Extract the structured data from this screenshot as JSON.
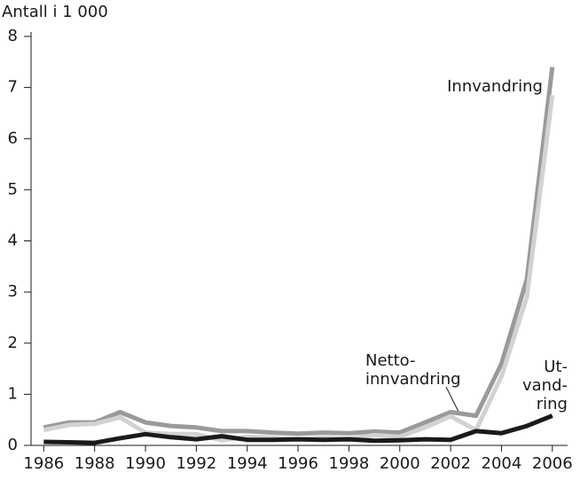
{
  "chart_data": {
    "type": "line",
    "title": "Antall i 1 000",
    "x": [
      1986,
      1987,
      1988,
      1989,
      1990,
      1991,
      1992,
      1993,
      1994,
      1995,
      1996,
      1997,
      1998,
      1999,
      2000,
      2001,
      2002,
      2003,
      2004,
      2005,
      2006
    ],
    "series": [
      {
        "label": [
          "Innvandring"
        ],
        "color": "#9a9a9a",
        "values": [
          0.35,
          0.45,
          0.45,
          0.65,
          0.45,
          0.38,
          0.35,
          0.28,
          0.28,
          0.25,
          0.23,
          0.25,
          0.24,
          0.27,
          0.25,
          0.45,
          0.65,
          0.58,
          1.6,
          3.25,
          7.4
        ]
      },
      {
        "label": [
          "Netto-",
          "innvandring"
        ],
        "color": "#d2d2d2",
        "values": [
          0.3,
          0.4,
          0.42,
          0.55,
          0.25,
          0.22,
          0.22,
          0.1,
          0.17,
          0.15,
          0.12,
          0.15,
          0.13,
          0.2,
          0.17,
          0.35,
          0.57,
          0.3,
          1.35,
          2.9,
          6.85
        ]
      },
      {
        "label": [
          "Ut-",
          "vand-",
          "ring"
        ],
        "color": "#1a1a1a",
        "values": [
          0.07,
          0.06,
          0.05,
          0.14,
          0.22,
          0.16,
          0.12,
          0.18,
          0.11,
          0.11,
          0.12,
          0.11,
          0.12,
          0.09,
          0.1,
          0.12,
          0.11,
          0.28,
          0.24,
          0.38,
          0.58
        ]
      }
    ],
    "xlim": [
      1985.5,
      2006.6
    ],
    "xticks": [
      1986,
      1988,
      1990,
      1992,
      1994,
      1996,
      1998,
      2000,
      2002,
      2004,
      2006
    ],
    "ylim": [
      0,
      8
    ],
    "yticks": [
      0,
      1,
      2,
      3,
      4,
      5,
      6,
      7,
      8
    ]
  }
}
